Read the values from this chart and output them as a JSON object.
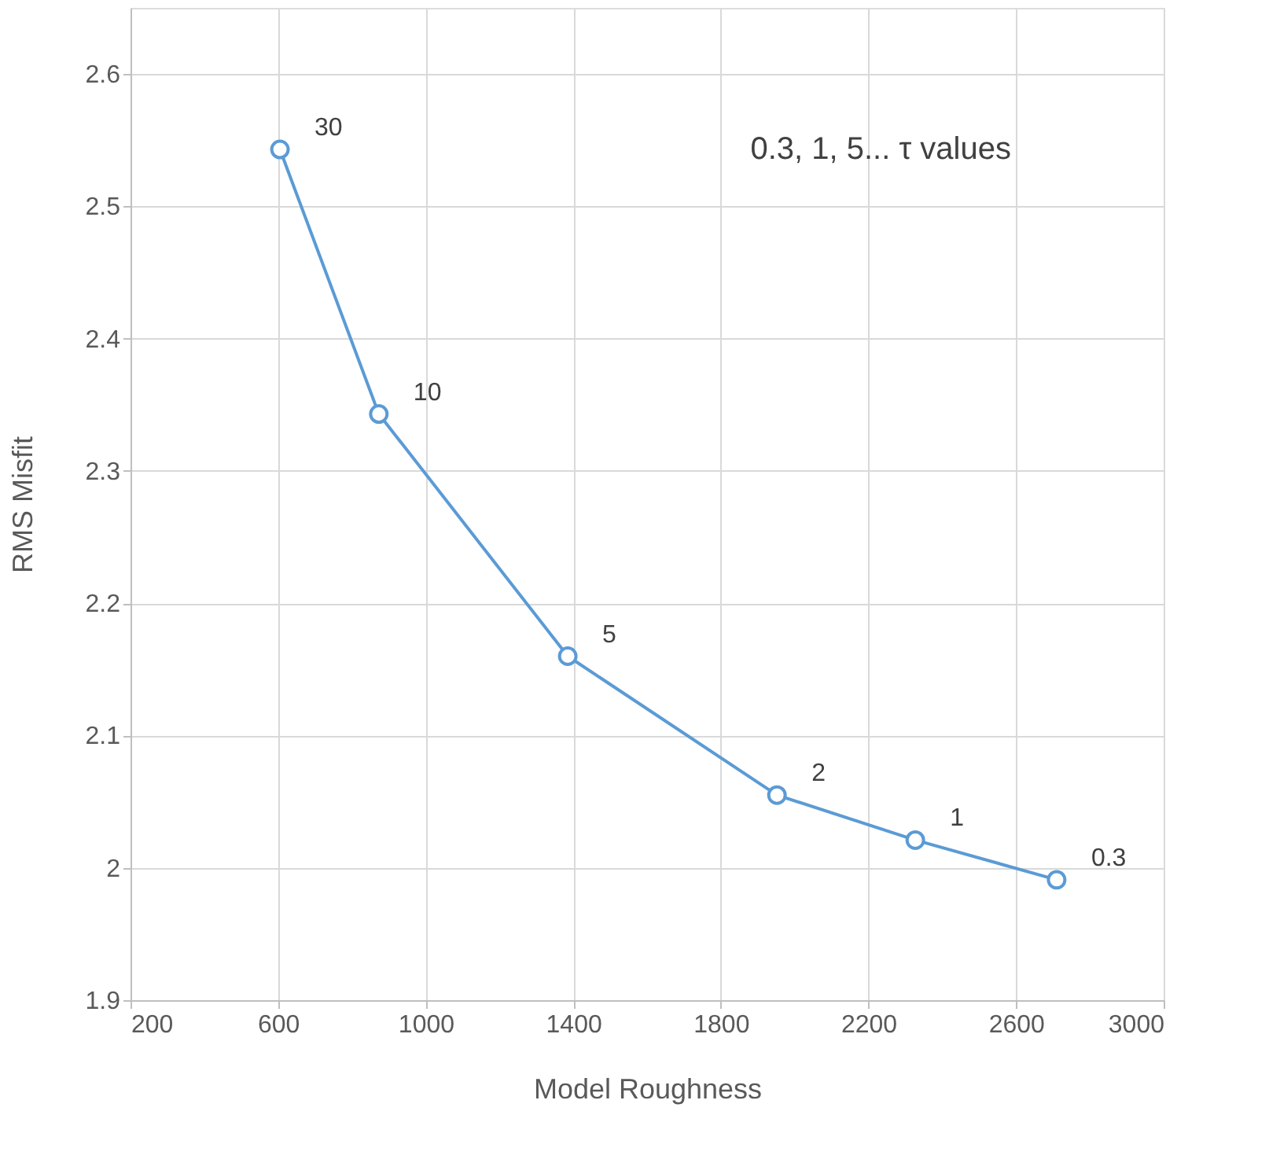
{
  "chart_data": {
    "type": "line",
    "xlabel": "Model Roughness",
    "ylabel": "RMS Misfit",
    "x": [
      605,
      873,
      1385,
      1952,
      2327,
      2710
    ],
    "series": [
      {
        "color": "#5b9bd5",
        "values": [
          2.543,
          2.343,
          2.16,
          2.055,
          2.021,
          1.991
        ]
      }
    ],
    "xlim": [
      200,
      3000
    ],
    "xticks": [
      200,
      600,
      1000,
      1400,
      1800,
      2200,
      2600,
      3000
    ],
    "ylim": [
      1.9,
      2.65
    ],
    "yticks": [
      1.9,
      2,
      2.1,
      2.2,
      2.3,
      2.4,
      2.5,
      2.6
    ],
    "grid": true,
    "marker": "circle",
    "line_style": "solid",
    "annotations": [
      {
        "text": "30",
        "x": 605,
        "y": 2.543
      },
      {
        "text": "10",
        "x": 873,
        "y": 2.343
      },
      {
        "text": "5",
        "x": 1385,
        "y": 2.16
      },
      {
        "text": "2",
        "x": 1952,
        "y": 2.055
      },
      {
        "text": "1",
        "x": 2327,
        "y": 2.021
      },
      {
        "text": "0.3",
        "x": 2710,
        "y": 1.991
      },
      "0.3, 1, 5... τ values"
    ]
  }
}
